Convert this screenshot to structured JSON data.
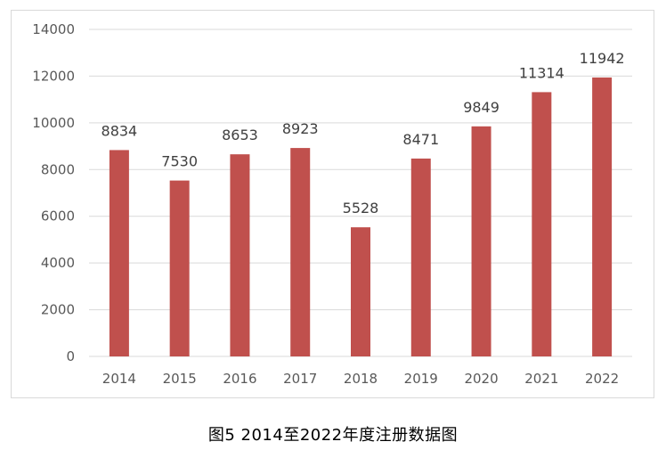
{
  "caption": "图5  2014至2022年度注册数据图",
  "colors": {
    "bar": "#c0504d",
    "trendline": "#c0504d",
    "gridline": "#d9d9d9",
    "axis_text": "#595959"
  },
  "chart_data": {
    "type": "bar",
    "categories": [
      "2014",
      "2015",
      "2016",
      "2017",
      "2018",
      "2019",
      "2020",
      "2021",
      "2022"
    ],
    "series": [
      {
        "values": [
          8834,
          7530,
          8653,
          8923,
          5528,
          8471,
          9849,
          11314,
          11942
        ]
      }
    ],
    "data_labels": [
      "8834",
      "7530",
      "8653",
      "8923",
      "5528",
      "8471",
      "9849",
      "11314",
      "11942"
    ],
    "ylim": [
      0,
      14000
    ],
    "yticks": [
      "0",
      "2000",
      "4000",
      "6000",
      "8000",
      "10000",
      "12000",
      "14000"
    ],
    "grid": true,
    "legend": "none",
    "trendline": "dotted polynomial"
  }
}
